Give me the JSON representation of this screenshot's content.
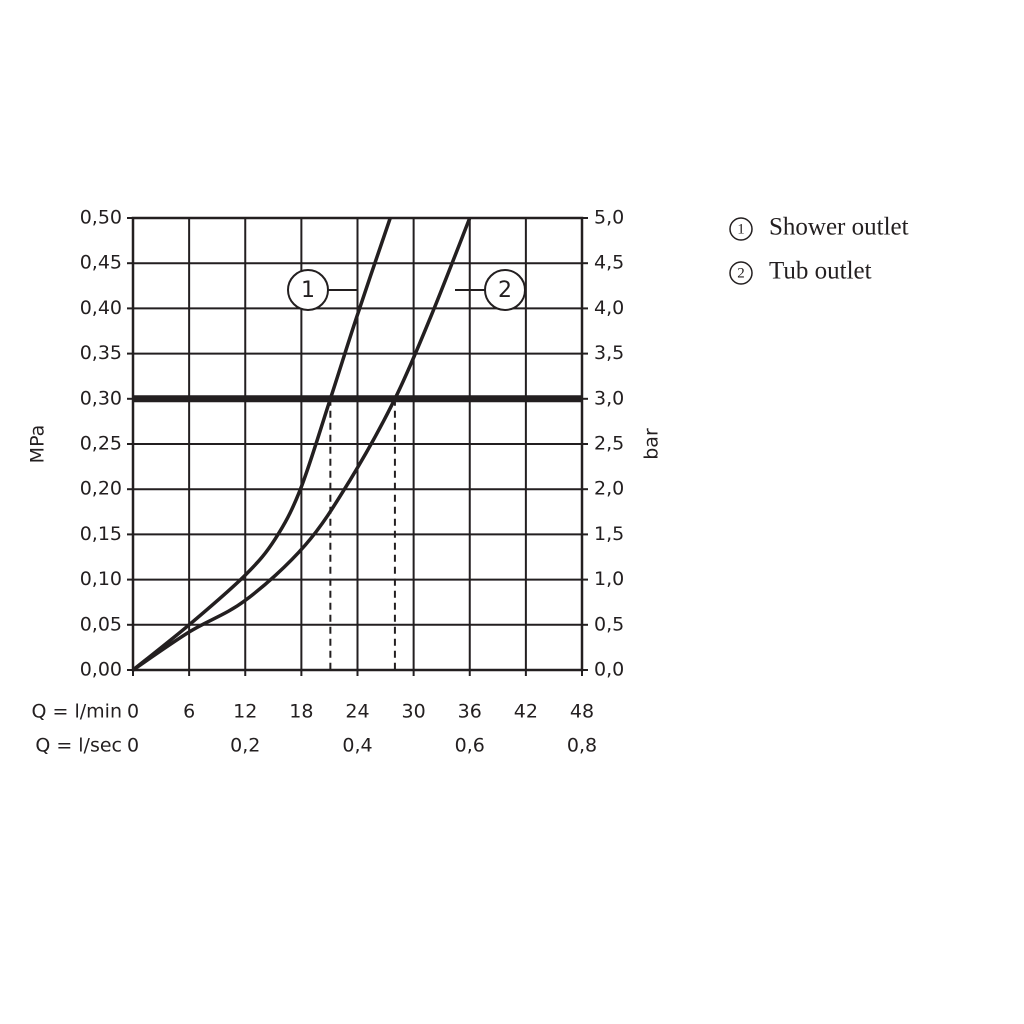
{
  "chart_data": {
    "type": "line",
    "x_title": "Q = l/min",
    "x2_title": "Q = l/sec",
    "y_title": "MPa",
    "y2_title": "bar",
    "xlim": [
      0,
      48
    ],
    "xticks": [
      0,
      6,
      12,
      18,
      24,
      30,
      36,
      42,
      48
    ],
    "x2lim": [
      0,
      0.8
    ],
    "x2ticks": [
      0,
      {
        "value": 0.2,
        "label": "0,2"
      },
      {
        "value": 0.4,
        "label": "0,4"
      },
      {
        "value": 0.6,
        "label": "0,6"
      },
      {
        "value": 0.8,
        "label": "0,8"
      }
    ],
    "ylim": [
      0,
      0.5
    ],
    "yticks": [
      {
        "value": 0,
        "label": "0,00"
      },
      {
        "value": 0.05,
        "label": "0,05"
      },
      {
        "value": 0.1,
        "label": "0,10"
      },
      {
        "value": 0.15,
        "label": "0,15"
      },
      {
        "value": 0.2,
        "label": "0,20"
      },
      {
        "value": 0.25,
        "label": "0,25"
      },
      {
        "value": 0.3,
        "label": "0,30"
      },
      {
        "value": 0.35,
        "label": "0,35"
      },
      {
        "value": 0.4,
        "label": "0,40"
      },
      {
        "value": 0.45,
        "label": "0,45"
      },
      {
        "value": 0.5,
        "label": "0,50"
      }
    ],
    "y2lim": [
      0,
      5
    ],
    "y2ticks": [
      {
        "value": 0,
        "label": "0,0"
      },
      {
        "value": 0.5,
        "label": "0,5"
      },
      {
        "value": 1,
        "label": "1,0"
      },
      {
        "value": 1.5,
        "label": "1,5"
      },
      {
        "value": 2,
        "label": "2,0"
      },
      {
        "value": 2.5,
        "label": "2,5"
      },
      {
        "value": 3,
        "label": "3,0"
      },
      {
        "value": 3.5,
        "label": "3,5"
      },
      {
        "value": 4,
        "label": "4,0"
      },
      {
        "value": 4.5,
        "label": "4,5"
      },
      {
        "value": 5,
        "label": "5,0"
      }
    ],
    "grid": true,
    "threshold": 0.3,
    "series": [
      {
        "name": "Shower outlet",
        "label": "1",
        "color": "#231f20",
        "x": [
          0,
          6,
          12,
          15.2,
          17.9,
          21.1,
          23.9,
          27.5
        ],
        "values": [
          0,
          0.05,
          0.105,
          0.145,
          0.2,
          0.3,
          0.39,
          0.5
        ]
      },
      {
        "name": "Tub outlet",
        "label": "2",
        "color": "#231f20",
        "x": [
          0,
          6,
          12,
          18.4,
          23.2,
          28,
          31.8,
          36
        ],
        "values": [
          0,
          0.042,
          0.077,
          0.138,
          0.21,
          0.3,
          0.39,
          0.5
        ]
      }
    ]
  }
}
